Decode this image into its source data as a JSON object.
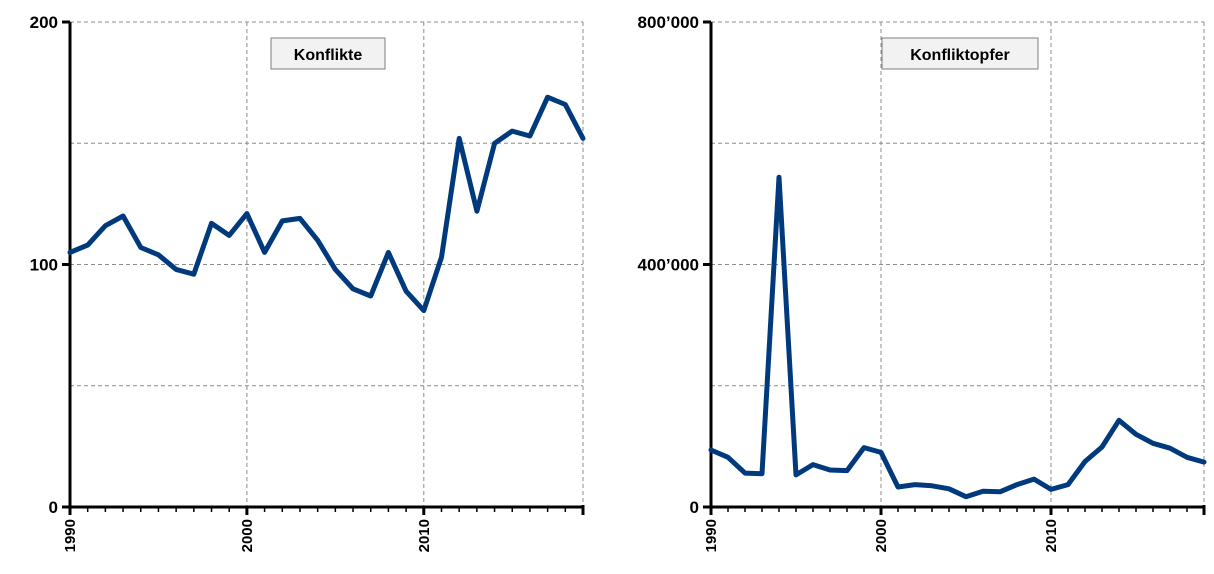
{
  "chart_data": [
    {
      "type": "line",
      "title": "Konflikte",
      "xlabel": "",
      "ylabel": "",
      "xlim": [
        1990,
        2019
      ],
      "ylim": [
        0,
        200
      ],
      "y_ticks": [
        0,
        100,
        200
      ],
      "y_tick_labels": [
        "0",
        "100",
        "200"
      ],
      "x_ticks": [
        1990,
        2000,
        2010
      ],
      "x_tick_labels": [
        "1990",
        "2000",
        "2010"
      ],
      "grid": true,
      "color": "#003a7d",
      "x": [
        1990,
        1991,
        1992,
        1993,
        1994,
        1995,
        1996,
        1997,
        1998,
        1999,
        2000,
        2001,
        2002,
        2003,
        2004,
        2005,
        2006,
        2007,
        2008,
        2009,
        2010,
        2011,
        2012,
        2013,
        2014,
        2015,
        2016,
        2017,
        2018,
        2019
      ],
      "values": [
        105,
        108,
        116,
        120,
        107,
        104,
        98,
        96,
        117,
        112,
        121,
        105,
        118,
        119,
        110,
        98,
        90,
        87,
        105,
        89,
        81,
        103,
        152,
        122,
        150,
        155,
        153,
        169,
        166,
        152
      ]
    },
    {
      "type": "line",
      "title": "Konfliktopfer",
      "xlabel": "",
      "ylabel": "",
      "xlim": [
        1990,
        2019
      ],
      "ylim": [
        0,
        800000
      ],
      "y_ticks": [
        0,
        400000,
        800000
      ],
      "y_tick_labels": [
        "0",
        "400’000",
        "800’000"
      ],
      "x_ticks": [
        1990,
        2000,
        2010
      ],
      "x_tick_labels": [
        "1990",
        "2000",
        "2010"
      ],
      "grid": true,
      "color": "#003a7d",
      "x": [
        1990,
        1991,
        1992,
        1993,
        1994,
        1995,
        1996,
        1997,
        1998,
        1999,
        2000,
        2001,
        2002,
        2003,
        2004,
        2005,
        2006,
        2007,
        2008,
        2009,
        2010,
        2011,
        2012,
        2013,
        2014,
        2015,
        2016,
        2017,
        2018,
        2019
      ],
      "values": [
        94000,
        82000,
        56000,
        55000,
        544000,
        53000,
        70000,
        61000,
        60000,
        98000,
        90000,
        33000,
        37000,
        35000,
        30000,
        17000,
        26000,
        25000,
        37000,
        46000,
        29000,
        37000,
        75000,
        99000,
        143000,
        120000,
        105000,
        97000,
        82000,
        74000
      ]
    }
  ]
}
